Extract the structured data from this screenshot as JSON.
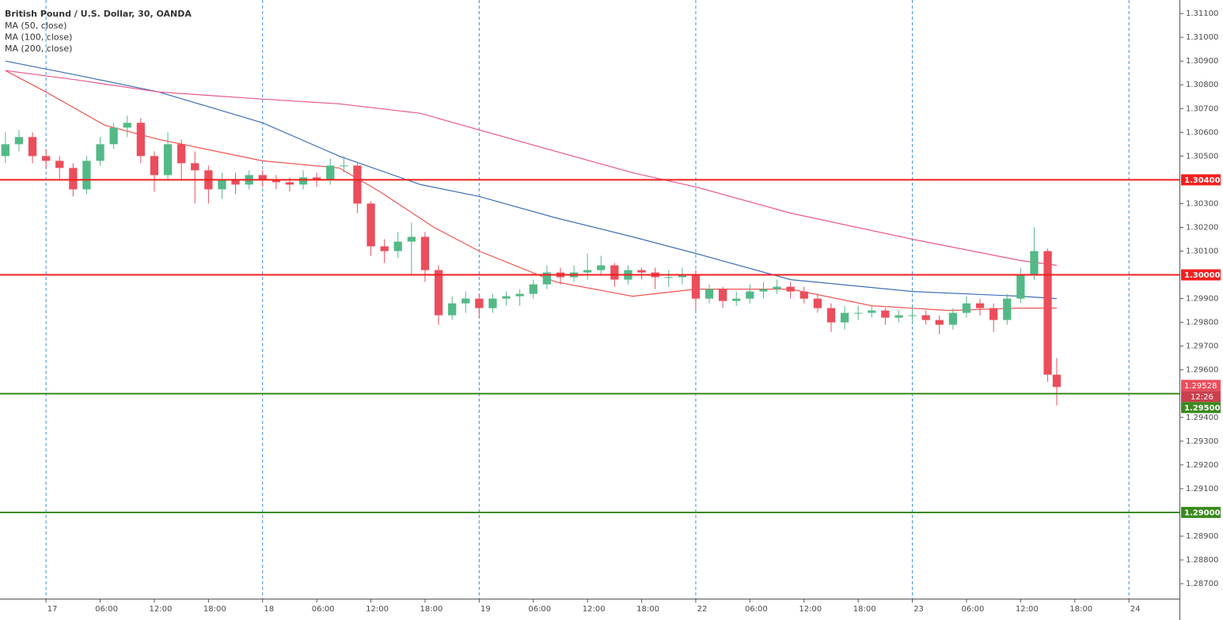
{
  "chart_data": {
    "type": "candlestick",
    "title": "British Pound / U.S. Dollar, 30, OANDA",
    "up_color": "#53b987",
    "down_color": "#eb4d5c",
    "x": [
      -9,
      -6,
      -3,
      0,
      3,
      6,
      9,
      12,
      15,
      18,
      21,
      24,
      27,
      30,
      33,
      36,
      39,
      42,
      45,
      48,
      51,
      54,
      57,
      60,
      63,
      66,
      69,
      72,
      75,
      78,
      81,
      84,
      87,
      90,
      93,
      96,
      99,
      102,
      105,
      108,
      111,
      114,
      117,
      120,
      123,
      126,
      129,
      132,
      135,
      138,
      141,
      144,
      147,
      150,
      153,
      156,
      159,
      162,
      165,
      168,
      171,
      174,
      177,
      180,
      183,
      186,
      189,
      192,
      195,
      198,
      201,
      204,
      207,
      210,
      213,
      216,
      219,
      222,
      224
    ],
    "open": [
      1.305,
      1.3055,
      1.3058,
      1.305,
      1.3048,
      1.3045,
      1.3036,
      1.3048,
      1.3055,
      1.3062,
      1.3064,
      1.305,
      1.3042,
      1.3055,
      1.3047,
      1.3044,
      1.3036,
      1.304,
      1.3038,
      1.3042,
      1.304,
      1.3039,
      1.3038,
      1.3041,
      1.304,
      1.3046,
      1.3046,
      1.303,
      1.3012,
      1.301,
      1.3014,
      1.3016,
      1.3002,
      1.2983,
      1.2988,
      1.299,
      1.2986,
      1.299,
      1.2991,
      1.2992,
      1.2996,
      1.3001,
      1.2999,
      1.3001,
      1.3002,
      1.3004,
      1.2998,
      1.3002,
      1.3001,
      1.2999,
      1.2999,
      1.3,
      1.299,
      1.2994,
      1.2989,
      1.299,
      1.2993,
      1.2994,
      1.2995,
      1.2993,
      1.299,
      1.2986,
      1.298,
      1.2984,
      1.2984,
      1.2985,
      1.2982,
      1.2983,
      1.2983,
      1.2981,
      1.2979,
      1.2984,
      1.2988,
      1.2986,
      1.2981,
      1.299,
      1.3,
      1.301,
      1.2958
    ],
    "high": [
      1.306,
      1.3061,
      1.306,
      1.3053,
      1.305,
      1.3047,
      1.305,
      1.3058,
      1.3064,
      1.3067,
      1.3066,
      1.3052,
      1.306,
      1.3057,
      1.3052,
      1.3046,
      1.3043,
      1.3043,
      1.3044,
      1.3044,
      1.3042,
      1.3041,
      1.3044,
      1.3043,
      1.3049,
      1.305,
      1.3047,
      1.3031,
      1.3015,
      1.3018,
      1.3022,
      1.3018,
      1.3004,
      1.2991,
      1.2993,
      1.2992,
      1.2992,
      1.2993,
      1.2994,
      1.2998,
      1.3004,
      1.3003,
      1.3004,
      1.3009,
      1.3008,
      1.3005,
      1.3004,
      1.3003,
      1.3003,
      1.3002,
      1.3003,
      1.3002,
      1.2996,
      1.2995,
      1.2993,
      1.2996,
      1.2997,
      1.2998,
      1.2997,
      1.2995,
      1.2992,
      1.2988,
      1.2987,
      1.2987,
      1.2987,
      1.2986,
      1.2985,
      1.2986,
      1.2985,
      1.2983,
      1.2986,
      1.2991,
      1.299,
      1.2988,
      1.2992,
      1.3003,
      1.302,
      1.3011,
      1.2965
    ],
    "low": [
      1.3047,
      1.3052,
      1.3047,
      1.3045,
      1.304,
      1.3033,
      1.3034,
      1.3046,
      1.3053,
      1.3058,
      1.3047,
      1.3035,
      1.304,
      1.304,
      1.303,
      1.303,
      1.3032,
      1.3034,
      1.3036,
      1.3037,
      1.3036,
      1.3035,
      1.3036,
      1.3037,
      1.3038,
      1.3043,
      1.3026,
      1.3008,
      1.3005,
      1.3007,
      1.3,
      1.2997,
      1.2979,
      1.2981,
      1.2984,
      1.2982,
      1.2984,
      1.2987,
      1.2987,
      1.299,
      1.2994,
      1.2996,
      1.2997,
      1.2998,
      1.3,
      1.2995,
      1.2996,
      1.2998,
      1.2994,
      1.2995,
      1.2996,
      1.2985,
      1.2988,
      1.2986,
      1.2987,
      1.2988,
      1.299,
      1.2992,
      1.299,
      1.2988,
      1.2984,
      1.2976,
      1.2977,
      1.2981,
      1.2982,
      1.2979,
      1.298,
      1.298,
      1.2979,
      1.2975,
      1.2977,
      1.2982,
      1.2983,
      1.2976,
      1.2979,
      1.2988,
      1.2998,
      1.2955,
      1.2945
    ],
    "close": [
      1.3055,
      1.3058,
      1.305,
      1.3048,
      1.3045,
      1.3036,
      1.3048,
      1.3055,
      1.3062,
      1.3064,
      1.305,
      1.3042,
      1.3055,
      1.3047,
      1.3044,
      1.3036,
      1.304,
      1.3038,
      1.3042,
      1.304,
      1.3039,
      1.3038,
      1.3041,
      1.304,
      1.3046,
      1.3046,
      1.303,
      1.3012,
      1.301,
      1.3014,
      1.3016,
      1.3002,
      1.2983,
      1.2988,
      1.299,
      1.2986,
      1.299,
      1.2991,
      1.2992,
      1.2996,
      1.3001,
      1.2999,
      1.3001,
      1.3002,
      1.3004,
      1.2998,
      1.3002,
      1.3001,
      1.2999,
      1.2999,
      1.3,
      1.299,
      1.2994,
      1.2989,
      1.299,
      1.2993,
      1.2994,
      1.2995,
      1.2993,
      1.299,
      1.2986,
      1.298,
      1.2984,
      1.2984,
      1.2985,
      1.2982,
      1.2983,
      1.2983,
      1.2981,
      1.2979,
      1.2984,
      1.2988,
      1.2986,
      1.2981,
      1.299,
      1.3,
      1.301,
      1.2958,
      1.29528
    ],
    "series": [
      {
        "name": "MA (50, close)",
        "color": "#ef5350",
        "x": [
          -9,
          0,
          13,
          25,
          48,
          65,
          74,
          86,
          96,
          113,
          130,
          144,
          165,
          183,
          200,
          216,
          224
        ],
        "values": [
          1.3086,
          1.3077,
          1.3063,
          1.3057,
          1.3048,
          1.3045,
          1.3035,
          1.302,
          1.301,
          1.2997,
          1.2991,
          1.2994,
          1.2994,
          1.2987,
          1.2985,
          1.2986,
          1.2986
        ]
      },
      {
        "name": "MA (100, close)",
        "color": "#3f6fb5",
        "x": [
          -9,
          7,
          25,
          48,
          65,
          83,
          96,
          113,
          130,
          144,
          165,
          192,
          216,
          224
        ],
        "values": [
          1.309,
          1.3084,
          1.3077,
          1.3064,
          1.305,
          1.3038,
          1.3033,
          1.3024,
          1.3016,
          1.3009,
          1.2998,
          1.2993,
          1.2991,
          1.299
        ]
      },
      {
        "name": "MA (200, close)",
        "color": "#e8578a",
        "x": [
          -9,
          7,
          25,
          48,
          65,
          83,
          96,
          113,
          130,
          144,
          165,
          192,
          216,
          224
        ],
        "values": [
          1.3086,
          1.3082,
          1.3077,
          1.3074,
          1.3072,
          1.3068,
          1.3061,
          1.3052,
          1.3043,
          1.3037,
          1.3026,
          1.3015,
          1.3006,
          1.3004
        ]
      }
    ],
    "levels": [
      {
        "value": 1.304,
        "label": "1.30400",
        "color": "#f21f1f"
      },
      {
        "value": 1.3,
        "label": "1.30000",
        "color": "#f21f1f"
      },
      {
        "value": 1.295,
        "label": "1.29500",
        "color": "#3b8a1e"
      },
      {
        "value": 1.29,
        "label": "1.29000",
        "color": "#3b8a1e"
      }
    ],
    "last_price": {
      "value": 1.29528,
      "label": "1.29528"
    },
    "countdown": "12:26",
    "xlim": [
      -10.2,
      251.2
    ],
    "ylim": [
      1.28637,
      1.31157
    ],
    "yticks": [
      {
        "value": 1.287,
        "label": "1.28700"
      },
      {
        "value": 1.288,
        "label": "1.28800"
      },
      {
        "value": 1.289,
        "label": "1.28900"
      },
      {
        "value": 1.291,
        "label": "1.29100"
      },
      {
        "value": 1.292,
        "label": "1.29200"
      },
      {
        "value": 1.293,
        "label": "1.29300"
      },
      {
        "value": 1.294,
        "label": "1.29400"
      },
      {
        "value": 1.296,
        "label": "1.29600"
      },
      {
        "value": 1.297,
        "label": "1.29700"
      },
      {
        "value": 1.298,
        "label": "1.29800"
      },
      {
        "value": 1.299,
        "label": "1.29900"
      },
      {
        "value": 1.301,
        "label": "1.30100"
      },
      {
        "value": 1.302,
        "label": "1.30200"
      },
      {
        "value": 1.303,
        "label": "1.30300"
      },
      {
        "value": 1.305,
        "label": "1.30500"
      },
      {
        "value": 1.306,
        "label": "1.30600"
      },
      {
        "value": 1.307,
        "label": "1.30700"
      },
      {
        "value": 1.308,
        "label": "1.30800"
      },
      {
        "value": 1.309,
        "label": "1.30900"
      },
      {
        "value": 1.31,
        "label": "1.31000"
      },
      {
        "value": 1.311,
        "label": "1.31100"
      }
    ],
    "xticks": [
      {
        "value": 0,
        "label": "17"
      },
      {
        "value": 12,
        "label": "06:00"
      },
      {
        "value": 24,
        "label": "12:00"
      },
      {
        "value": 36,
        "label": "18:00"
      },
      {
        "value": 48,
        "label": "18"
      },
      {
        "value": 60,
        "label": "06:00"
      },
      {
        "value": 72,
        "label": "12:00"
      },
      {
        "value": 84,
        "label": "18:00"
      },
      {
        "value": 96,
        "label": "19"
      },
      {
        "value": 108,
        "label": "06:00"
      },
      {
        "value": 120,
        "label": "12:00"
      },
      {
        "value": 132,
        "label": "18:00"
      },
      {
        "value": 144,
        "label": "22"
      },
      {
        "value": 156,
        "label": "06:00"
      },
      {
        "value": 168,
        "label": "12:00"
      },
      {
        "value": 180,
        "label": "18:00"
      },
      {
        "value": 192,
        "label": "23"
      },
      {
        "value": 204,
        "label": "06:00"
      },
      {
        "value": 216,
        "label": "12:00"
      },
      {
        "value": 228,
        "label": "18:00"
      },
      {
        "value": 240,
        "label": "24"
      }
    ]
  }
}
